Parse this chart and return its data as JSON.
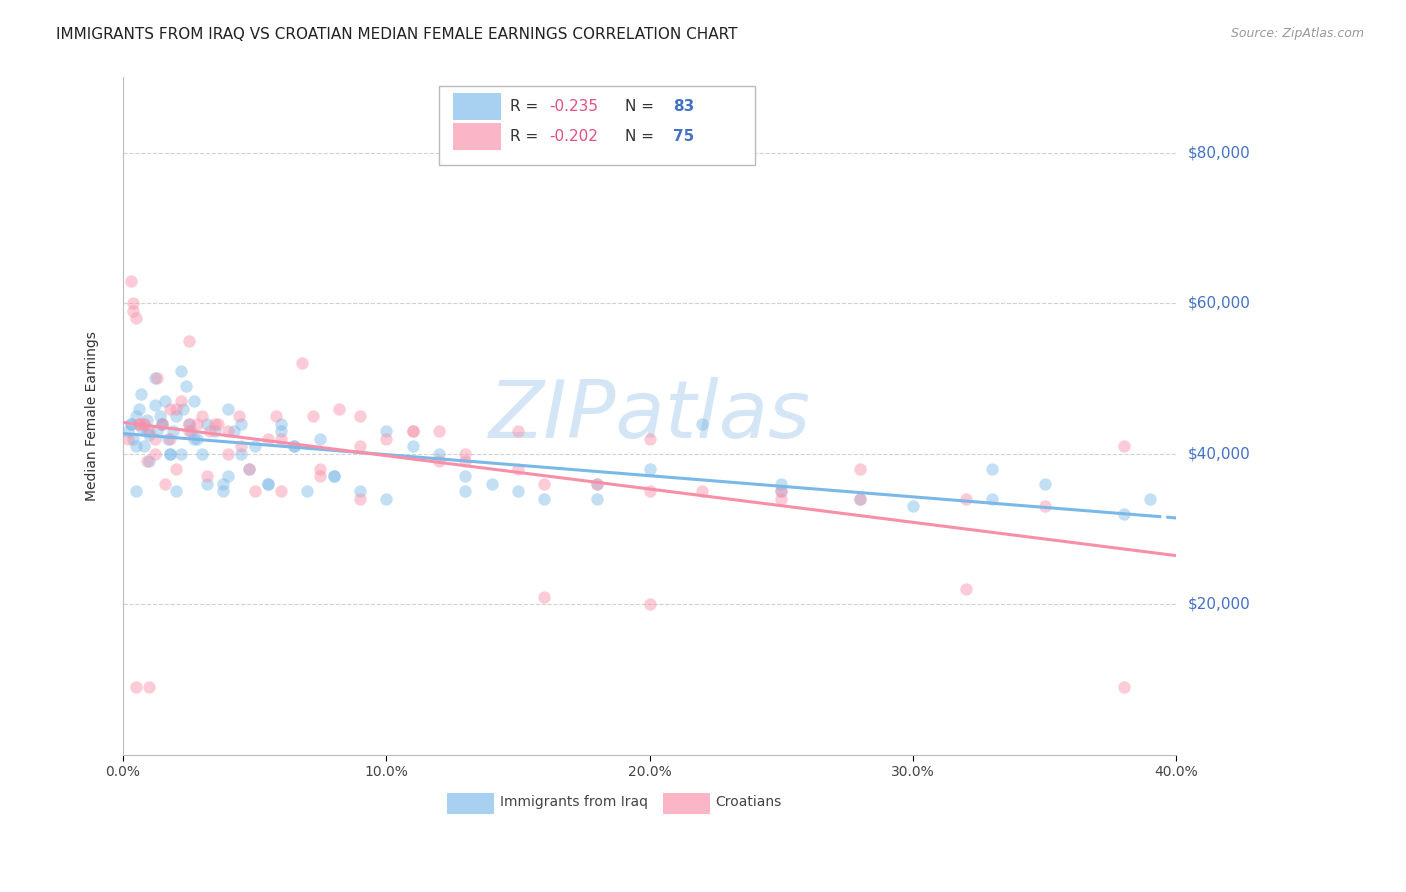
{
  "title": "IMMIGRANTS FROM IRAQ VS CROATIAN MEDIAN FEMALE EARNINGS CORRELATION CHART",
  "source": "Source: ZipAtlas.com",
  "ylabel": "Median Female Earnings",
  "color_iraq": "#7ab8e8",
  "color_croatian": "#f88fa8",
  "color_ytick_labels": "#4472c4",
  "color_r_values": "#e05080",
  "color_n_values": "#4472c4",
  "watermark_color": "#d0e4f5",
  "background_color": "#ffffff",
  "grid_color": "#cccccc",
  "xlim": [
    0.0,
    0.4
  ],
  "ylim": [
    0,
    90000
  ],
  "yticks": [
    20000,
    40000,
    60000,
    80000
  ],
  "ytick_labels": [
    "$20,000",
    "$40,000",
    "$60,000",
    "$80,000"
  ],
  "legend_iraq_R": "-0.235",
  "legend_iraq_N": "83",
  "legend_croatian_R": "-0.202",
  "legend_croatian_N": "75",
  "iraq_x": [
    0.002,
    0.003,
    0.004,
    0.005,
    0.006,
    0.007,
    0.008,
    0.009,
    0.01,
    0.012,
    0.013,
    0.014,
    0.015,
    0.016,
    0.017,
    0.018,
    0.019,
    0.02,
    0.022,
    0.023,
    0.024,
    0.025,
    0.026,
    0.027,
    0.028,
    0.03,
    0.032,
    0.035,
    0.038,
    0.04,
    0.042,
    0.045,
    0.048,
    0.05,
    0.055,
    0.06,
    0.065,
    0.07,
    0.075,
    0.08,
    0.09,
    0.1,
    0.11,
    0.12,
    0.13,
    0.14,
    0.15,
    0.16,
    0.18,
    0.2,
    0.22,
    0.25,
    0.28,
    0.3,
    0.33,
    0.35,
    0.38,
    0.003,
    0.005,
    0.007,
    0.009,
    0.012,
    0.015,
    0.018,
    0.022,
    0.027,
    0.032,
    0.038,
    0.045,
    0.055,
    0.065,
    0.08,
    0.1,
    0.13,
    0.18,
    0.25,
    0.33,
    0.39,
    0.005,
    0.01,
    0.02,
    0.04,
    0.06
  ],
  "iraq_y": [
    43000,
    44000,
    42000,
    45000,
    46000,
    43500,
    41000,
    44500,
    42500,
    46500,
    43000,
    45000,
    44000,
    47000,
    42000,
    40000,
    43000,
    45000,
    51000,
    46000,
    49000,
    44000,
    43000,
    47000,
    42000,
    40000,
    44000,
    43000,
    36000,
    46000,
    43000,
    44000,
    38000,
    41000,
    36000,
    44000,
    41000,
    35000,
    42000,
    37000,
    35000,
    43000,
    41000,
    40000,
    37000,
    36000,
    35000,
    34000,
    34000,
    38000,
    44000,
    36000,
    34000,
    33000,
    34000,
    36000,
    32000,
    44000,
    41000,
    48000,
    43000,
    50000,
    44000,
    40000,
    40000,
    42000,
    36000,
    35000,
    40000,
    36000,
    41000,
    37000,
    34000,
    35000,
    36000,
    35000,
    38000,
    34000,
    35000,
    39000,
    35000,
    37000,
    43000
  ],
  "croatian_x": [
    0.002,
    0.004,
    0.005,
    0.006,
    0.008,
    0.01,
    0.012,
    0.015,
    0.018,
    0.02,
    0.022,
    0.025,
    0.028,
    0.03,
    0.033,
    0.036,
    0.04,
    0.044,
    0.048,
    0.055,
    0.06,
    0.068,
    0.075,
    0.082,
    0.09,
    0.1,
    0.11,
    0.12,
    0.13,
    0.15,
    0.16,
    0.18,
    0.2,
    0.22,
    0.25,
    0.28,
    0.32,
    0.35,
    0.003,
    0.006,
    0.009,
    0.012,
    0.016,
    0.02,
    0.025,
    0.032,
    0.04,
    0.05,
    0.06,
    0.075,
    0.09,
    0.11,
    0.13,
    0.16,
    0.2,
    0.25,
    0.32,
    0.38,
    0.004,
    0.008,
    0.013,
    0.018,
    0.025,
    0.035,
    0.045,
    0.058,
    0.072,
    0.09,
    0.12,
    0.15,
    0.2,
    0.28,
    0.38,
    0.005,
    0.01
  ],
  "croatian_y": [
    42000,
    59000,
    58000,
    44000,
    44000,
    43000,
    42000,
    44000,
    46000,
    46000,
    47000,
    55000,
    44000,
    45000,
    43000,
    44000,
    43000,
    45000,
    38000,
    42000,
    42000,
    52000,
    38000,
    46000,
    41000,
    42000,
    43000,
    39000,
    40000,
    38000,
    36000,
    36000,
    35000,
    35000,
    34000,
    34000,
    34000,
    33000,
    63000,
    44000,
    39000,
    40000,
    36000,
    38000,
    43000,
    37000,
    40000,
    35000,
    35000,
    37000,
    45000,
    43000,
    39000,
    21000,
    20000,
    35000,
    22000,
    9000,
    60000,
    44000,
    50000,
    42000,
    44000,
    44000,
    41000,
    45000,
    45000,
    34000,
    43000,
    43000,
    42000,
    38000,
    41000,
    9000,
    9000
  ],
  "title_fontsize": 11,
  "source_fontsize": 9,
  "axis_label_fontsize": 10,
  "legend_fontsize": 11,
  "ytick_fontsize": 11,
  "xtick_fontsize": 10,
  "marker_size": 80,
  "marker_alpha": 0.45,
  "line_width": 2.2
}
